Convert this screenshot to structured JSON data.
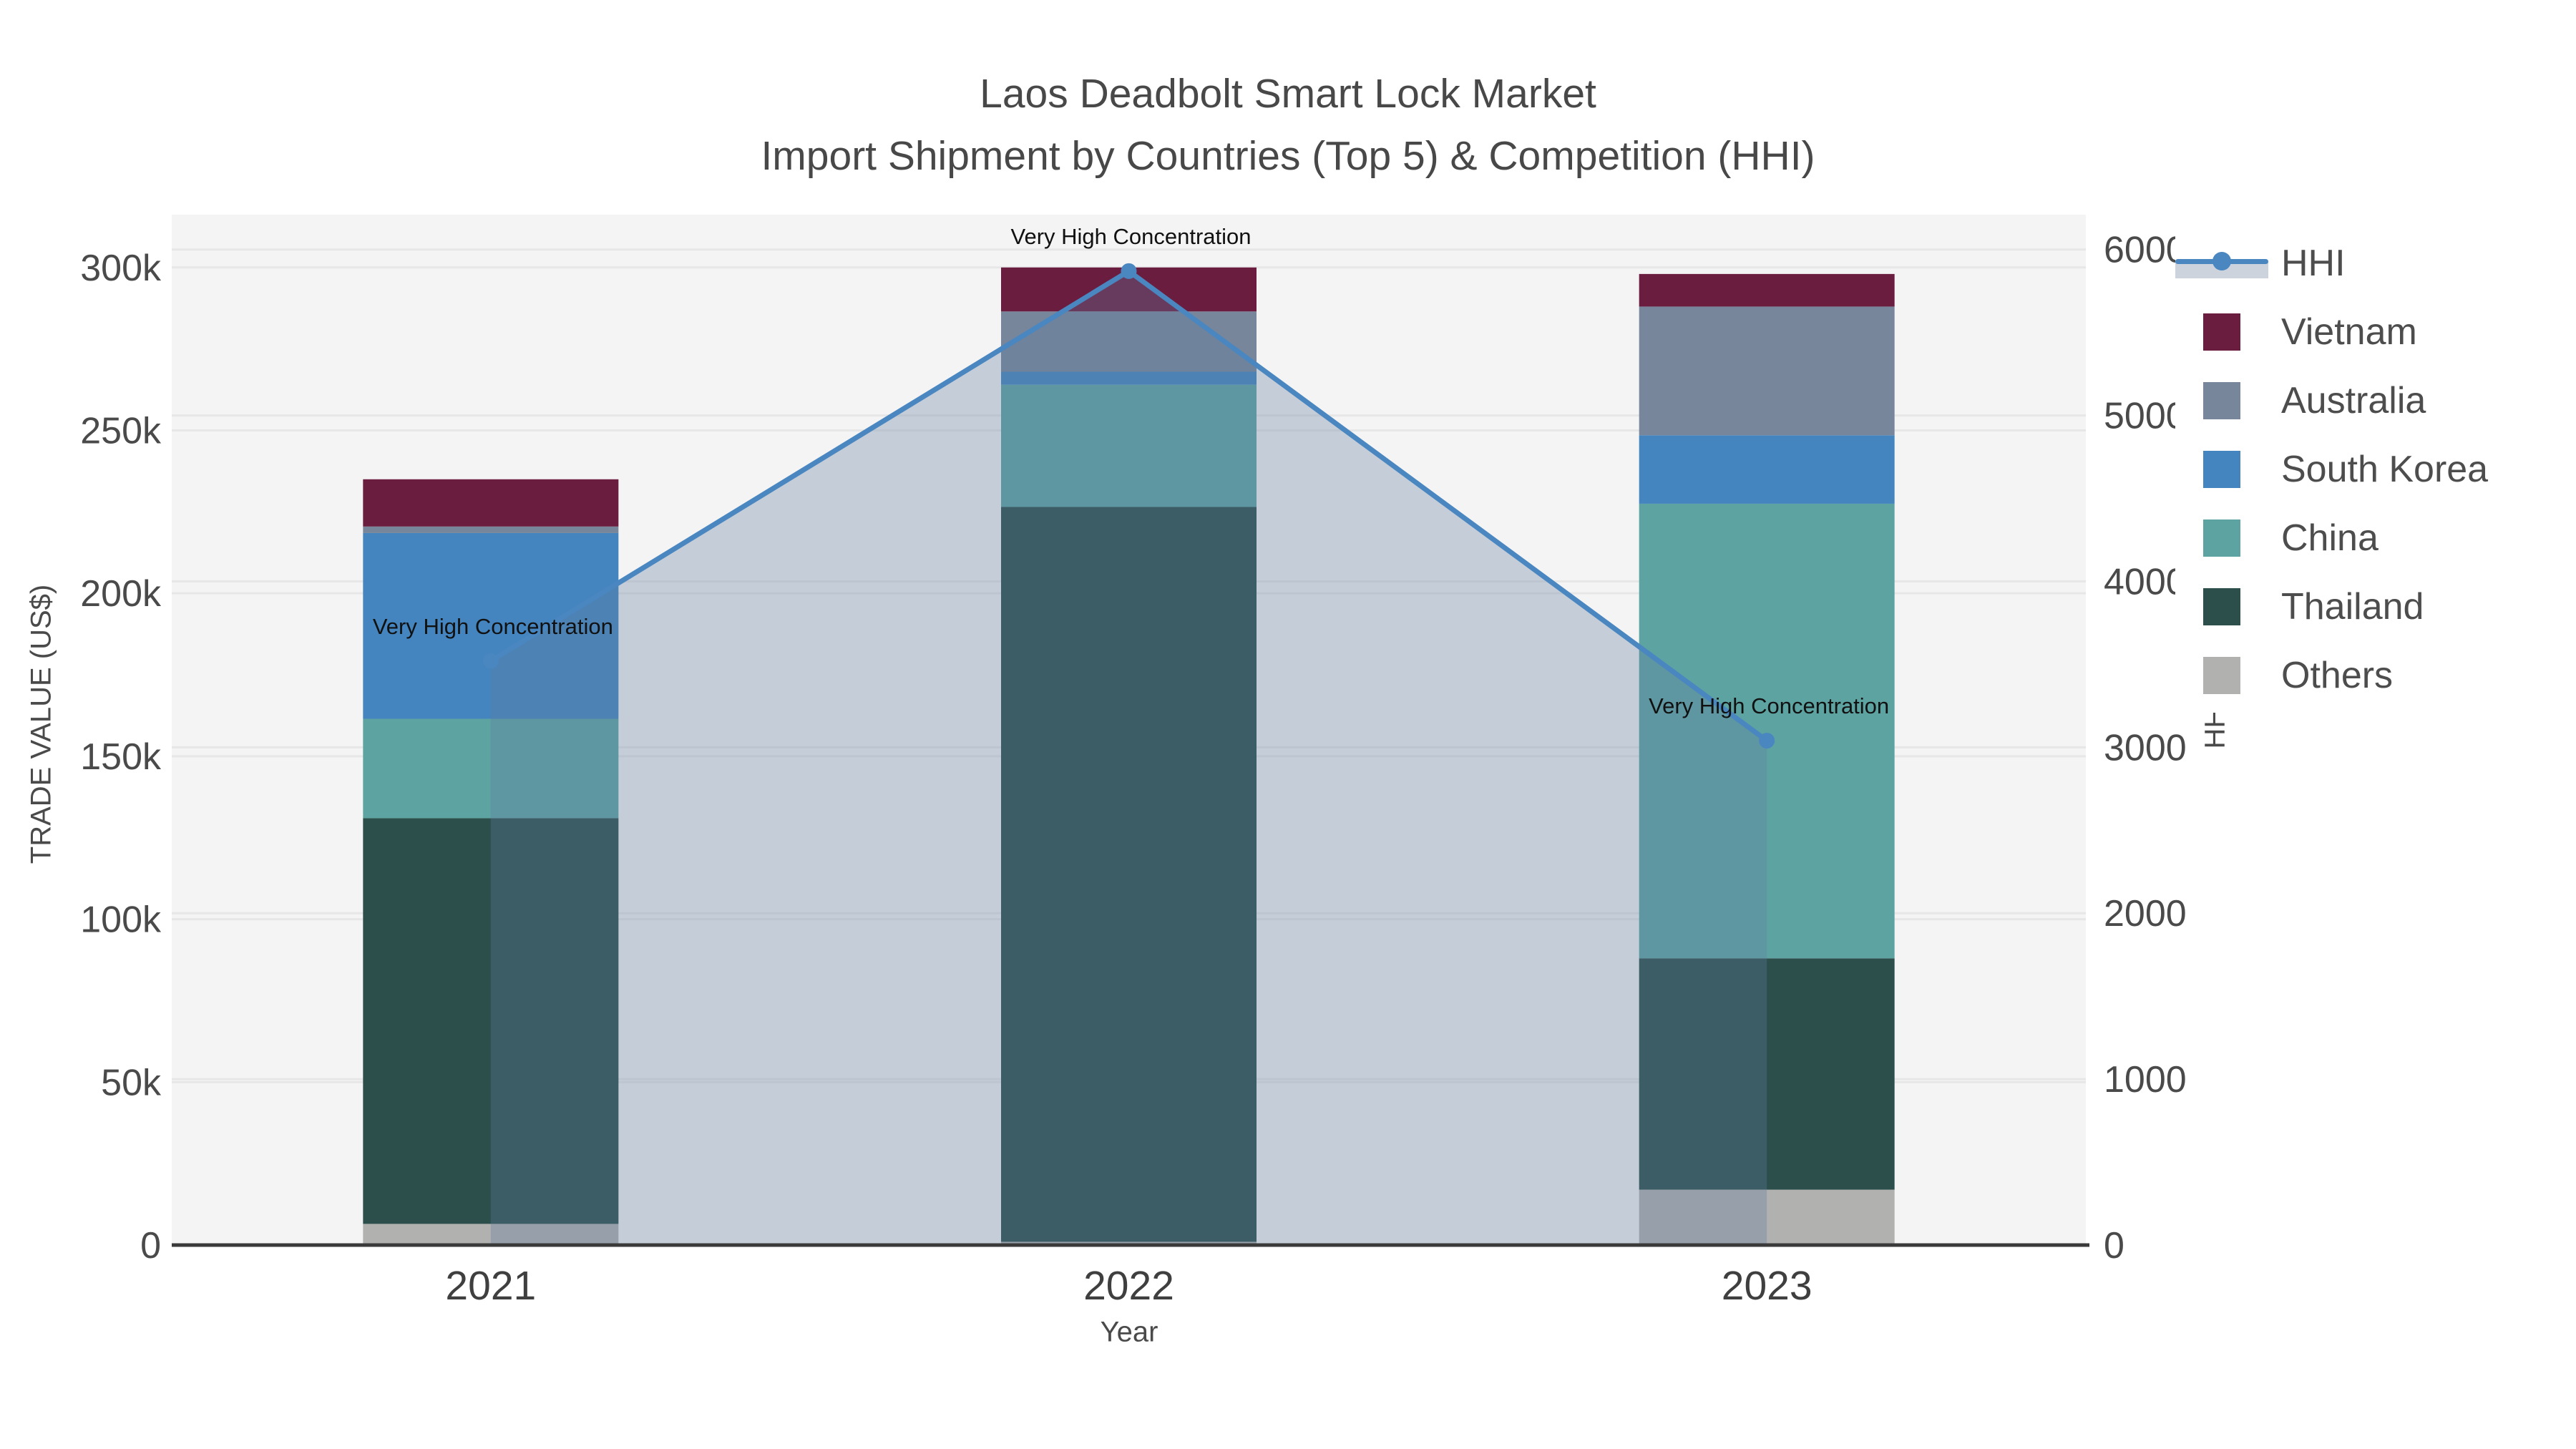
{
  "title": {
    "line1": "Laos Deadbolt Smart Lock Market",
    "line2": "Import Shipment by Countries (Top 5) & Competition (HHI)"
  },
  "axes": {
    "left_title": "TRADE VALUE (US$)",
    "right_title": "HHI",
    "x_title": "Year",
    "left_tick_labels": [
      "0",
      "50k",
      "100k",
      "150k",
      "200k",
      "250k",
      "300k"
    ],
    "left_tick_values": [
      0,
      50000,
      100000,
      150000,
      200000,
      250000,
      300000
    ],
    "right_tick_labels": [
      "0",
      "1000",
      "2000",
      "3000",
      "4000",
      "5000",
      "6000"
    ],
    "right_tick_values": [
      0,
      1000,
      2000,
      3000,
      4000,
      5000,
      6000
    ]
  },
  "legend": [
    {
      "label": "HHI",
      "type": "line"
    },
    {
      "label": "Vietnam",
      "type": "swatch",
      "color": "#6b1d40"
    },
    {
      "label": "Australia",
      "type": "swatch",
      "color": "#77869b"
    },
    {
      "label": "South Korea",
      "type": "swatch",
      "color": "#4485bf"
    },
    {
      "label": "China",
      "type": "swatch",
      "color": "#5da3a2"
    },
    {
      "label": "Thailand",
      "type": "swatch",
      "color": "#2d4f4c"
    },
    {
      "label": "Others",
      "type": "swatch",
      "color": "#b1b1b0"
    }
  ],
  "annotations": [
    {
      "year": "2021",
      "text": "Very High Concentration"
    },
    {
      "year": "2022",
      "text": "Very High Concentration"
    },
    {
      "year": "2023",
      "text": "Very High Concentration"
    }
  ],
  "chart_data": {
    "type": "bar+line",
    "title": "Laos Deadbolt Smart Lock Market — Import Shipment by Countries (Top 5) & Competition (HHI)",
    "categories": [
      "2021",
      "2022",
      "2023"
    ],
    "stack_order_bottom_to_top": [
      "Others",
      "Thailand",
      "China",
      "South Korea",
      "Australia",
      "Vietnam"
    ],
    "series": [
      {
        "name": "Vietnam",
        "type": "bar",
        "color": "#6b1d40",
        "values": [
          14500,
          13500,
          10000
        ]
      },
      {
        "name": "Australia",
        "type": "bar",
        "color": "#77869b",
        "values": [
          2000,
          18500,
          39500
        ]
      },
      {
        "name": "South Korea",
        "type": "bar",
        "color": "#4485bf",
        "values": [
          57000,
          4000,
          21000
        ]
      },
      {
        "name": "China",
        "type": "bar",
        "color": "#5da3a2",
        "values": [
          30500,
          37500,
          139500
        ]
      },
      {
        "name": "Thailand",
        "type": "bar",
        "color": "#2d4f4c",
        "values": [
          124500,
          225500,
          71000
        ]
      },
      {
        "name": "Others",
        "type": "bar",
        "color": "#b1b1b0",
        "values": [
          6500,
          1000,
          17000
        ]
      }
    ],
    "bar_totals": [
      235000,
      300000,
      298000
    ],
    "hhi_line": {
      "name": "HHI",
      "type": "line",
      "color": "#4a86c0",
      "values": [
        3520,
        5870,
        3040
      ]
    },
    "left_axis": {
      "label": "TRADE VALUE (US$)",
      "range": [
        0,
        316200
      ],
      "grid": true
    },
    "right_axis": {
      "label": "HHI",
      "range": [
        0,
        6210
      ],
      "grid": true
    },
    "xlabel": "Year",
    "legend_position": "top-right",
    "annotation_text": "Very High Concentration"
  },
  "colors": {
    "plot_bg": "#f4f4f4",
    "grid": "#e7e7e7",
    "axis_line": "#3a3a3a",
    "hhi_line": "#4a86c0",
    "fill_area": "rgba(95,125,160,0.32)",
    "tick_text": "#4a4a4a",
    "x_tick_text": "#3f3f3f",
    "title_text": "#484848",
    "annotation_text": "#111111",
    "legend_text": "#4d4d4d"
  }
}
